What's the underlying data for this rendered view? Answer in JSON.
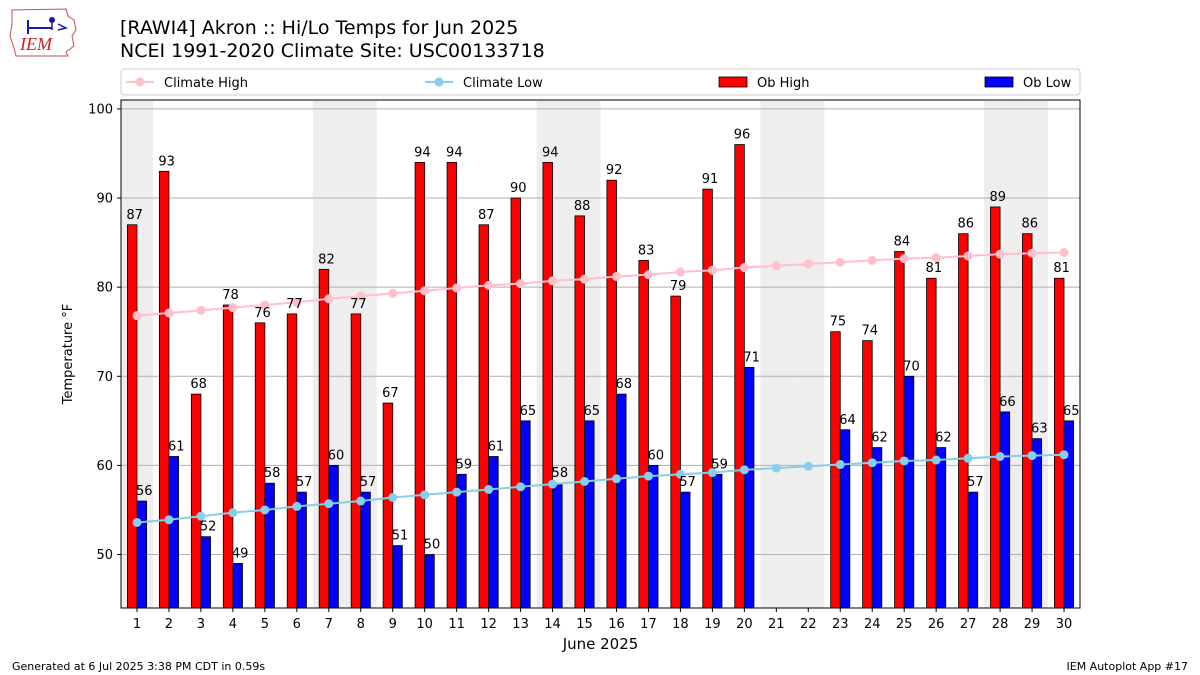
{
  "header": {
    "title_line1": "[RAWI4] Akron :: Hi/Lo Temps for Jun 2025",
    "title_line2": "NCEI 1991-2020 Climate Site: USC00133718",
    "logo_text": "IEM"
  },
  "footer": {
    "left": "Generated at 6 Jul 2025 3:38 PM CDT in 0.59s",
    "right": "IEM Autoplot App #17"
  },
  "colors": {
    "ob_high": "#ff0000",
    "ob_low": "#0000ff",
    "climate_high": "#ffc0cb",
    "climate_low": "#87ceeb",
    "weekend_shade": "#eeeeee",
    "grid": "#b0b0b0"
  },
  "chart_data": {
    "type": "bar",
    "xlabel": "June 2025",
    "ylabel": "Temperature °F",
    "ylim": [
      44,
      101
    ],
    "yticks": [
      50,
      60,
      70,
      80,
      90,
      100
    ],
    "grid": "horizontal",
    "legend_position": "top",
    "categories": [
      "1",
      "2",
      "3",
      "4",
      "5",
      "6",
      "7",
      "8",
      "9",
      "10",
      "11",
      "12",
      "13",
      "14",
      "15",
      "16",
      "17",
      "18",
      "19",
      "20",
      "21",
      "22",
      "23",
      "24",
      "25",
      "26",
      "27",
      "28",
      "29",
      "30"
    ],
    "shaded_days": [
      1,
      7,
      8,
      14,
      15,
      21,
      22,
      28,
      29
    ],
    "series": [
      {
        "name": "Climate High",
        "kind": "line",
        "values": [
          76.8,
          77.1,
          77.4,
          77.7,
          78.0,
          78.3,
          78.7,
          79.0,
          79.3,
          79.6,
          79.9,
          80.2,
          80.4,
          80.7,
          80.9,
          81.2,
          81.4,
          81.7,
          81.9,
          82.2,
          82.4,
          82.6,
          82.8,
          83.0,
          83.2,
          83.3,
          83.5,
          83.7,
          83.8,
          83.9
        ]
      },
      {
        "name": "Climate Low",
        "kind": "line",
        "values": [
          53.6,
          53.9,
          54.3,
          54.7,
          55.0,
          55.4,
          55.7,
          56.0,
          56.4,
          56.7,
          57.0,
          57.3,
          57.6,
          57.9,
          58.2,
          58.5,
          58.8,
          59.0,
          59.2,
          59.5,
          59.7,
          59.9,
          60.1,
          60.3,
          60.5,
          60.6,
          60.8,
          61.0,
          61.1,
          61.2
        ]
      },
      {
        "name": "Ob High",
        "kind": "bar",
        "values": [
          87,
          93,
          68,
          78,
          76,
          77,
          82,
          77,
          67,
          94,
          94,
          87,
          90,
          94,
          88,
          92,
          83,
          79,
          91,
          96,
          null,
          null,
          75,
          74,
          84,
          81,
          86,
          89,
          86,
          81
        ]
      },
      {
        "name": "Ob Low",
        "kind": "bar",
        "values": [
          56,
          61,
          52,
          49,
          58,
          57,
          60,
          57,
          51,
          50,
          59,
          61,
          65,
          58,
          65,
          68,
          60,
          57,
          59,
          71,
          null,
          null,
          64,
          62,
          70,
          62,
          57,
          66,
          63,
          65
        ]
      }
    ]
  }
}
